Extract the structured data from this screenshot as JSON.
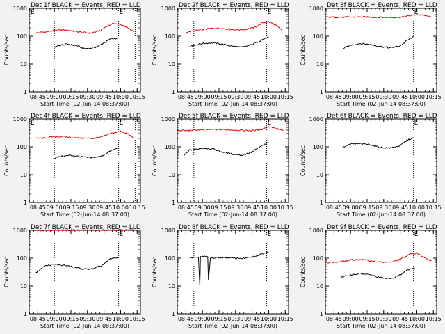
{
  "chart_data": [
    {
      "type": "line",
      "log_y": true,
      "ylim": [
        1,
        1000
      ],
      "title": "Det 1f BLACK = Events, RED = LLD",
      "xlabel": "Start Time (02-Jun-14 08:37:00)",
      "ylabel": "Counts/sec",
      "x_ticks": [
        "08:45",
        "09:00",
        "09:15",
        "09:30",
        "09:45",
        "10:00",
        "10:15"
      ],
      "y_ticks": [
        "1",
        "10",
        "100",
        "1000"
      ],
      "markers": [
        "E",
        "E"
      ],
      "series": [
        {
          "color": "#e00000",
          "x": [
            8.72,
            8.85,
            9.0,
            9.15,
            9.3,
            9.45,
            9.55,
            9.7,
            9.78,
            9.9,
            10.05,
            10.2
          ],
          "y": [
            130,
            142,
            160,
            170,
            150,
            135,
            130,
            160,
            220,
            290,
            240,
            145
          ]
        },
        {
          "color": "#000000",
          "x": [
            9.0,
            9.1,
            9.2,
            9.35,
            9.45,
            9.55,
            9.65,
            9.75,
            9.85,
            9.97
          ],
          "y": [
            40,
            48,
            52,
            45,
            36,
            37,
            42,
            58,
            80,
            85
          ]
        }
      ]
    },
    {
      "type": "line",
      "log_y": true,
      "ylim": [
        1,
        1000
      ],
      "title": "Det 2f BLACK = Events, RED = LLD",
      "xlabel": "Start Time (02-Jun-14 08:37:00)",
      "ylabel": "Counts/sec",
      "x_ticks": [
        "08:45",
        "09:00",
        "09:15",
        "09:30",
        "09:45",
        "10:00",
        "10:15"
      ],
      "y_ticks": [
        "1",
        "10",
        "100",
        "1000"
      ],
      "markers": [
        "E"
      ],
      "series": [
        {
          "color": "#e00000",
          "x": [
            8.75,
            8.9,
            9.05,
            9.2,
            9.35,
            9.5,
            9.65,
            9.8,
            9.9,
            10.0,
            10.1,
            10.2
          ],
          "y": [
            140,
            160,
            180,
            195,
            185,
            170,
            175,
            210,
            300,
            330,
            260,
            160
          ]
        },
        {
          "color": "#000000",
          "x": [
            8.75,
            8.85,
            9.0,
            9.15,
            9.3,
            9.45,
            9.6,
            9.75,
            9.9,
            10.0
          ],
          "y": [
            40,
            46,
            55,
            58,
            52,
            44,
            40,
            50,
            75,
            95
          ]
        }
      ]
    },
    {
      "type": "line",
      "log_y": true,
      "ylim": [
        1,
        1000
      ],
      "title": "Det 3f BLACK = Events, RED = LLD",
      "xlabel": "Start Time (02-Jun-14 08:37:00)",
      "ylabel": "Counts/sec",
      "x_ticks": [
        "08:45",
        "09:00",
        "09:15",
        "09:30",
        "09:45",
        "10:00",
        "10:15"
      ],
      "y_ticks": [
        "1",
        "10",
        "100",
        "1000"
      ],
      "markers": [
        "E"
      ],
      "series": [
        {
          "color": "#e00000",
          "x": [
            8.62,
            8.8,
            9.0,
            9.2,
            9.4,
            9.6,
            9.75,
            9.85,
            10.0,
            10.1,
            10.22
          ],
          "y": [
            480,
            480,
            485,
            490,
            480,
            470,
            480,
            520,
            600,
            560,
            480
          ]
        },
        {
          "color": "#000000",
          "x": [
            8.88,
            9.0,
            9.15,
            9.3,
            9.45,
            9.6,
            9.75,
            9.85,
            9.95
          ],
          "y": [
            35,
            48,
            55,
            50,
            43,
            38,
            45,
            70,
            95
          ]
        }
      ]
    },
    {
      "type": "line",
      "log_y": true,
      "ylim": [
        1,
        1000
      ],
      "title": "Det 4f BLACK = Events, RED = LLD",
      "xlabel": "Start Time (02-Jun-14 08:37:00)",
      "ylabel": "Counts/sec",
      "x_ticks": [
        "08:45",
        "09:00",
        "09:15",
        "09:30",
        "09:45",
        "10:00",
        "10:15"
      ],
      "y_ticks": [
        "1",
        "10",
        "100",
        "1000"
      ],
      "markers": [
        "E",
        "E"
      ],
      "series": [
        {
          "color": "#e00000",
          "x": [
            8.72,
            8.85,
            9.0,
            9.15,
            9.3,
            9.45,
            9.6,
            9.75,
            9.85,
            10.0,
            10.1,
            10.2
          ],
          "y": [
            200,
            205,
            230,
            230,
            210,
            205,
            200,
            240,
            300,
            360,
            300,
            200
          ]
        },
        {
          "color": "#000000",
          "x": [
            8.98,
            9.1,
            9.25,
            9.4,
            9.55,
            9.7,
            9.82,
            9.95
          ],
          "y": [
            38,
            45,
            50,
            44,
            40,
            45,
            65,
            90
          ]
        }
      ]
    },
    {
      "type": "line",
      "log_y": true,
      "ylim": [
        1,
        1000
      ],
      "title": "Det 5f BLACK = Events, RED = LLD",
      "xlabel": "Start Time (02-Jun-14 08:37:00)",
      "ylabel": "Counts/sec",
      "x_ticks": [
        "08:45",
        "09:00",
        "09:15",
        "09:30",
        "09:45",
        "10:00",
        "10:15"
      ],
      "y_ticks": [
        "1",
        "10",
        "100",
        "1000"
      ],
      "markers": [
        "E"
      ],
      "series": [
        {
          "color": "#e00000",
          "x": [
            8.62,
            8.8,
            9.0,
            9.2,
            9.4,
            9.6,
            9.75,
            9.9,
            10.0,
            10.1,
            10.22
          ],
          "y": [
            380,
            385,
            410,
            420,
            410,
            390,
            380,
            430,
            540,
            470,
            380
          ]
        },
        {
          "color": "#000000",
          "x": [
            8.72,
            8.8,
            9.0,
            9.15,
            9.3,
            9.45,
            9.6,
            9.75,
            9.9,
            10.0
          ],
          "y": [
            48,
            75,
            90,
            85,
            65,
            55,
            50,
            65,
            110,
            140
          ]
        }
      ]
    },
    {
      "type": "line",
      "log_y": true,
      "ylim": [
        1,
        1000
      ],
      "title": "Det 6f BLACK = Events, RED = LLD",
      "xlabel": "Start Time (02-Jun-14 08:37:00)",
      "ylabel": "Counts/sec",
      "x_ticks": [
        "08:45",
        "09:00",
        "09:15",
        "09:30",
        "09:45",
        "10:00",
        "10:15"
      ],
      "y_ticks": [
        "1",
        "10",
        "100",
        "1000"
      ],
      "markers": [
        "E"
      ],
      "series": [
        {
          "color": "#000000",
          "x": [
            8.88,
            9.0,
            9.15,
            9.3,
            9.45,
            9.6,
            9.75,
            9.85,
            9.95
          ],
          "y": [
            95,
            125,
            130,
            120,
            95,
            90,
            110,
            170,
            210
          ]
        }
      ]
    },
    {
      "type": "line",
      "log_y": true,
      "ylim": [
        1,
        1000
      ],
      "title": "Det 7f BLACK = Events, RED = LLD",
      "xlabel": "Start Time (02-Jun-14 08:37:00)",
      "ylabel": "Counts/sec",
      "x_ticks": [
        "08:45",
        "09:00",
        "09:15",
        "09:30",
        "09:45",
        "10:00",
        "10:15"
      ],
      "y_ticks": [
        "1",
        "10",
        "100",
        "1000"
      ],
      "markers": [
        "E"
      ],
      "series": [
        {
          "color": "#e00000",
          "x": [
            8.72,
            8.9,
            9.1,
            9.3,
            9.5,
            9.7,
            9.85,
            10.0,
            10.1,
            10.2
          ],
          "y": [
            1000,
            1000,
            1010,
            1020,
            1010,
            1000,
            1010,
            1030,
            1020,
            1000
          ]
        },
        {
          "color": "#000000",
          "x": [
            8.72,
            8.85,
            9.0,
            9.15,
            9.3,
            9.45,
            9.6,
            9.72,
            9.85,
            9.98
          ],
          "y": [
            30,
            52,
            60,
            55,
            47,
            40,
            42,
            55,
            95,
            110
          ]
        }
      ]
    },
    {
      "type": "line",
      "log_y": true,
      "ylim": [
        1,
        1000
      ],
      "title": "Det 8f BLACK = Events, RED = LLD",
      "xlabel": "Start Time (02-Jun-14 08:37:00)",
      "ylabel": "Counts/sec",
      "x_ticks": [
        "08:45",
        "09:00",
        "09:15",
        "09:30",
        "09:45",
        "10:00",
        "10:15"
      ],
      "y_ticks": [
        "1",
        "10",
        "100",
        "1000"
      ],
      "markers": [
        "E"
      ],
      "series": [
        {
          "color": "#000000",
          "x": [
            8.8,
            8.88,
            8.94,
            8.96,
            8.97,
            9.05,
            9.08,
            9.09,
            9.12,
            9.3,
            9.5,
            9.65,
            9.8,
            9.92,
            10.0
          ],
          "y": [
            100,
            110,
            105,
            10,
            110,
            115,
            112,
            16,
            100,
            105,
            100,
            100,
            115,
            150,
            165
          ]
        }
      ]
    },
    {
      "type": "line",
      "log_y": true,
      "ylim": [
        1,
        1000
      ],
      "title": "Det 9f BLACK = Events, RED = LLD",
      "xlabel": "Start Time (02-Jun-14 08:37:00)",
      "ylabel": "Counts/sec",
      "x_ticks": [
        "08:45",
        "09:00",
        "09:15",
        "09:30",
        "09:45",
        "10:00",
        "10:15"
      ],
      "y_ticks": [
        "1",
        "10",
        "100",
        "1000"
      ],
      "markers": [
        "E"
      ],
      "series": [
        {
          "color": "#e00000",
          "x": [
            8.62,
            8.8,
            9.0,
            9.15,
            9.3,
            9.45,
            9.6,
            9.75,
            9.9,
            10.0,
            10.1,
            10.22
          ],
          "y": [
            70,
            72,
            85,
            90,
            80,
            72,
            70,
            90,
            140,
            150,
            110,
            80
          ]
        },
        {
          "color": "#000000",
          "x": [
            8.85,
            9.0,
            9.15,
            9.3,
            9.45,
            9.6,
            9.75,
            9.85,
            9.97
          ],
          "y": [
            20,
            25,
            28,
            25,
            20,
            18,
            25,
            38,
            45
          ]
        }
      ]
    }
  ]
}
